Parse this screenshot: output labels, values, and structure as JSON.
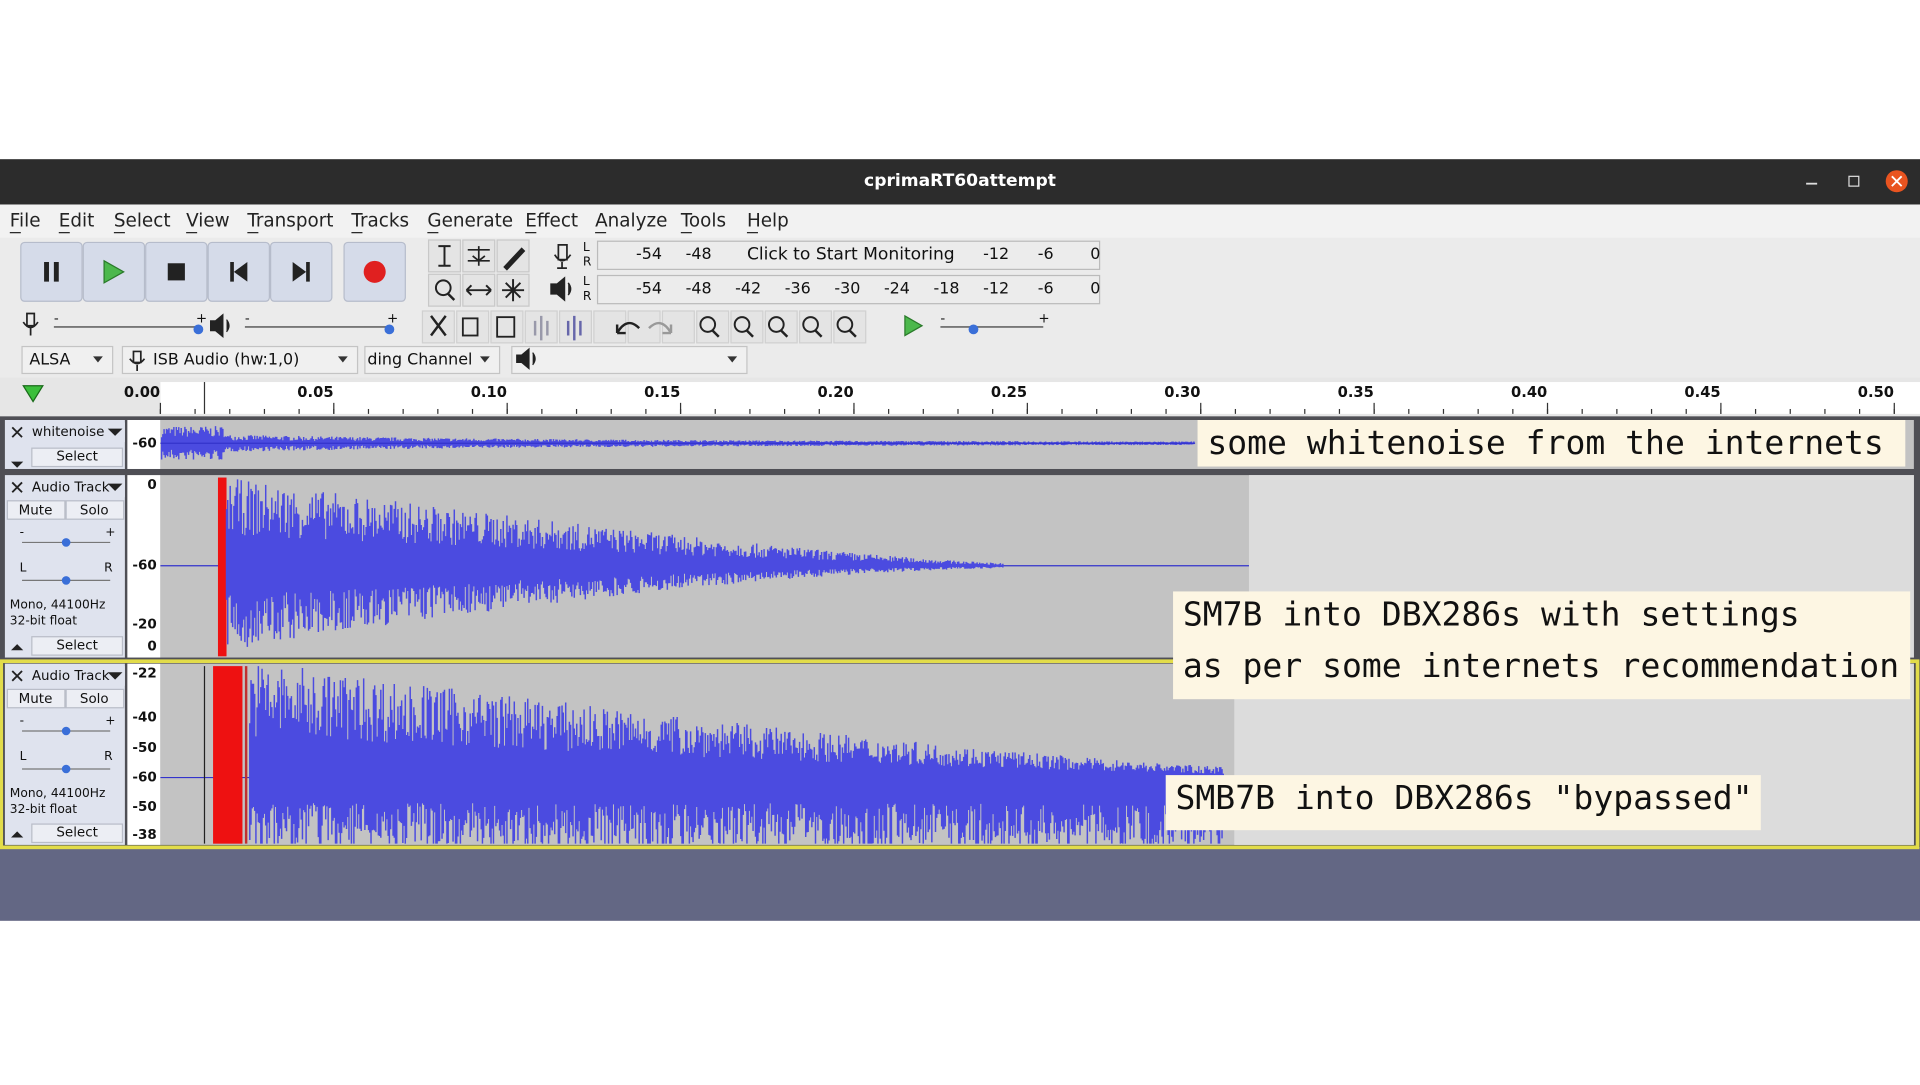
{
  "window": {
    "title": "cprimaRT60attempt"
  },
  "menu": [
    "File",
    "Edit",
    "Select",
    "View",
    "Transport",
    "Tracks",
    "Generate",
    "Effect",
    "Analyze",
    "Tools",
    "Help"
  ],
  "meters": {
    "record": {
      "channels": [
        "L",
        "R"
      ],
      "scale_left": [
        "-54",
        "-48"
      ],
      "prompt": "Click to Start Monitoring",
      "scale_right": [
        "-12",
        "-6",
        "0"
      ]
    },
    "playback": {
      "channels": [
        "L",
        "R"
      ],
      "scale": [
        "-54",
        "-48",
        "-42",
        "-36",
        "-30",
        "-24",
        "-18",
        "-12",
        "-6",
        "0"
      ]
    }
  },
  "sliders": {
    "minus": "-",
    "plus": "+"
  },
  "devices": {
    "host": "ALSA",
    "input": "ISB Audio (hw:1,0)",
    "channels": "ding Channel"
  },
  "ruler": {
    "ticks": [
      "0.00",
      "0.05",
      "0.10",
      "0.15",
      "0.20",
      "0.25",
      "0.30",
      "0.35",
      "0.40",
      "0.45",
      "0.50"
    ]
  },
  "tracks": [
    {
      "name": "whitenoise",
      "select": "Select",
      "scale": [
        "-60"
      ]
    },
    {
      "name": "Audio Track",
      "mute": "Mute",
      "solo": "Solo",
      "pan": [
        "L",
        "R"
      ],
      "info": [
        "Mono, 44100Hz",
        "32-bit float"
      ],
      "select": "Select",
      "scale": [
        "0",
        "-60",
        "-20",
        "0"
      ]
    },
    {
      "name": "Audio Track",
      "mute": "Mute",
      "solo": "Solo",
      "pan": [
        "L",
        "R"
      ],
      "info": [
        "Mono, 44100Hz",
        "32-bit float"
      ],
      "select": "Select",
      "scale": [
        "-22",
        "-40",
        "-50",
        "-60",
        "-50",
        "-38"
      ]
    }
  ],
  "annotations": [
    {
      "lines": [
        "some whitenoise from the internets"
      ]
    },
    {
      "lines": [
        "SM7B into DBX286s with settings",
        "as per some internets recommendation"
      ]
    },
    {
      "lines": [
        "SMB7B into DBX286s \"bypassed\""
      ]
    }
  ]
}
